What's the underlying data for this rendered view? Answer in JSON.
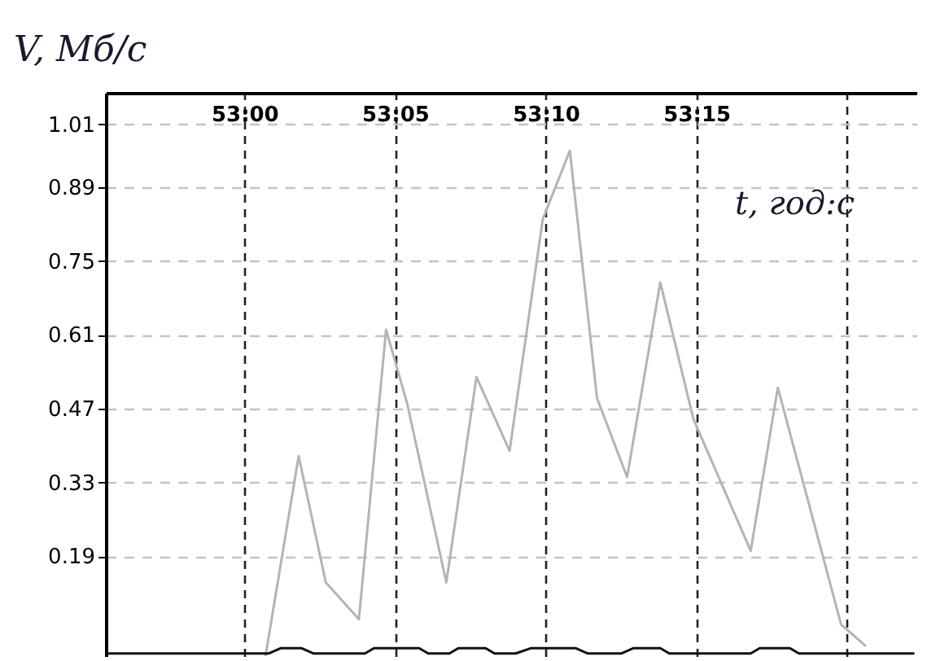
{
  "chart_data": {
    "type": "line",
    "xlabel": "t, год:с",
    "ylabel": "V, Мб/с",
    "xlim": [
      3175.4,
      3202.3
    ],
    "ylim": [
      0,
      1.07
    ],
    "xticks": [
      {
        "value": 3180,
        "label": "53:00"
      },
      {
        "value": 3185,
        "label": "53:05"
      },
      {
        "value": 3190,
        "label": "53:10"
      },
      {
        "value": 3195,
        "label": "53:15"
      },
      {
        "value": 3200,
        "label": null
      }
    ],
    "yticks": [
      0.19,
      0.33,
      0.47,
      0.61,
      0.75,
      0.89,
      1.01
    ],
    "grid": true,
    "series": [
      {
        "color": "#b4b4b4",
        "x": [
          3180.7,
          3181.8,
          3182.7,
          3183.8,
          3184.7,
          3185.4,
          3186.7,
          3187.7,
          3188.8,
          3189.9,
          3190.8,
          3191.7,
          3192.7,
          3193.8,
          3194.9,
          3196.8,
          3197.7,
          3199.8,
          3200.6
        ],
        "values": [
          0,
          0.38,
          0.14,
          0.07,
          0.62,
          0.48,
          0.14,
          0.53,
          0.39,
          0.83,
          0.96,
          0.49,
          0.34,
          0.71,
          0.45,
          0.2,
          0.51,
          0.06,
          0.02
        ]
      },
      {
        "color": "#111111",
        "x": [
          3175.5,
          3180.8,
          3181.2,
          3181.9,
          3182.3,
          3184.0,
          3184.3,
          3185.8,
          3186.1,
          3186.8,
          3187.1,
          3188.0,
          3188.3,
          3189.0,
          3189.5,
          3191.0,
          3191.4,
          3192.5,
          3192.9,
          3193.8,
          3194.1,
          3196.8,
          3197.1,
          3198.1,
          3198.4,
          3202.2
        ],
        "values": [
          0.005,
          0.005,
          0.015,
          0.015,
          0.005,
          0.005,
          0.015,
          0.015,
          0.005,
          0.005,
          0.015,
          0.015,
          0.005,
          0.005,
          0.015,
          0.015,
          0.005,
          0.005,
          0.015,
          0.015,
          0.005,
          0.005,
          0.015,
          0.015,
          0.005,
          0.005
        ]
      }
    ]
  }
}
